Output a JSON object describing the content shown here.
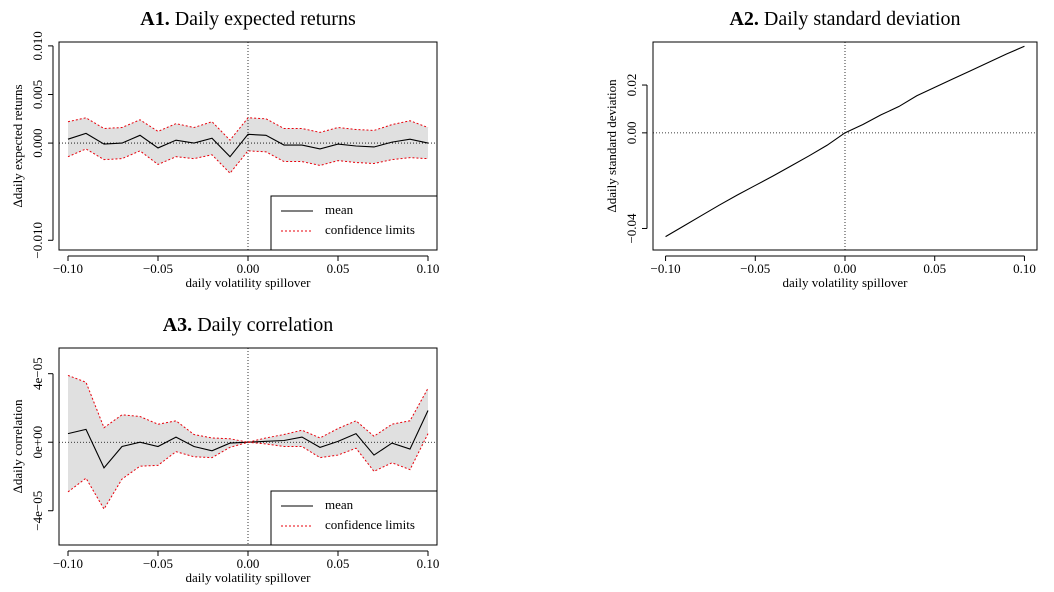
{
  "chart_data": [
    {
      "type": "line",
      "panel": "A1.",
      "title": "Daily expected returns",
      "xlabel": "daily volatility spillover",
      "ylabel": "Δdaily expected returns",
      "x": [
        -0.1,
        -0.09,
        -0.08,
        -0.07,
        -0.06,
        -0.05,
        -0.04,
        -0.03,
        -0.02,
        -0.01,
        0,
        0.01,
        0.02,
        0.03,
        0.04,
        0.05,
        0.06,
        0.07,
        0.08,
        0.09,
        0.1
      ],
      "xlim": [
        -0.105,
        0.105
      ],
      "xticks": [
        {
          "value": -0.1,
          "label": "−0.10"
        },
        {
          "value": -0.05,
          "label": "−0.05"
        },
        {
          "value": 0,
          "label": "0.00"
        },
        {
          "value": 0.05,
          "label": "0.05"
        },
        {
          "value": 0.1,
          "label": "0.10"
        }
      ],
      "ylim": [
        -0.011,
        0.0104
      ],
      "yticks": [
        {
          "value": -0.01,
          "label": "−0.010"
        },
        {
          "value": 0,
          "label": "0.000"
        },
        {
          "value": 0.005,
          "label": "0.005"
        },
        {
          "value": 0.01,
          "label": "0.010"
        }
      ],
      "legend": "lower right",
      "series": [
        {
          "name": "mean",
          "color": "#000000",
          "values": [
            0.0004,
            0.001,
            -0.0001,
            0,
            0.0008,
            -0.0005,
            0.0003,
            0,
            0.0005,
            -0.0014,
            0.0009,
            0.0008,
            -0.0002,
            -0.0002,
            -0.0006,
            -0.0001,
            -0.0003,
            -0.0004,
            0.0001,
            0.0004,
            0
          ]
        },
        {
          "name": "confidence limits",
          "color": "#e8000b",
          "band_color": "#e0e0e0",
          "upper": [
            0.0022,
            0.0026,
            0.0015,
            0.0016,
            0.0024,
            0.0012,
            0.002,
            0.0016,
            0.0022,
            0.0003,
            0.0026,
            0.0025,
            0.0015,
            0.0015,
            0.0011,
            0.0016,
            0.0014,
            0.0013,
            0.0019,
            0.0023,
            0.0016
          ],
          "lower": [
            -0.0014,
            -0.0006,
            -0.0017,
            -0.0016,
            -0.0008,
            -0.0022,
            -0.0014,
            -0.0016,
            -0.0012,
            -0.0031,
            -0.0008,
            -0.0009,
            -0.0019,
            -0.0019,
            -0.0023,
            -0.0018,
            -0.002,
            -0.0021,
            -0.0017,
            -0.0015,
            -0.0016
          ]
        }
      ]
    },
    {
      "type": "line",
      "panel": "A2.",
      "title": "Daily standard deviation",
      "xlabel": "daily volatility spillover",
      "ylabel": "Δdaily standard deviation",
      "x": [
        -0.1,
        -0.09,
        -0.08,
        -0.07,
        -0.06,
        -0.05,
        -0.04,
        -0.03,
        -0.02,
        -0.01,
        0,
        0.01,
        0.02,
        0.03,
        0.04,
        0.05,
        0.06,
        0.07,
        0.08,
        0.09,
        0.1
      ],
      "xlim": [
        -0.107,
        0.107
      ],
      "xticks": [
        {
          "value": -0.1,
          "label": "−0.10"
        },
        {
          "value": -0.05,
          "label": "−0.05"
        },
        {
          "value": 0,
          "label": "0.00"
        },
        {
          "value": 0.05,
          "label": "0.05"
        },
        {
          "value": 0.1,
          "label": "0.10"
        }
      ],
      "ylim": [
        -0.049,
        0.038
      ],
      "yticks": [
        {
          "value": -0.04,
          "label": "−0.04"
        },
        {
          "value": 0,
          "label": "0.00"
        },
        {
          "value": 0.02,
          "label": "0.02"
        }
      ],
      "series": [
        {
          "name": "mean",
          "color": "#000000",
          "values": [
            -0.0434,
            -0.039,
            -0.0346,
            -0.0302,
            -0.026,
            -0.022,
            -0.018,
            -0.0138,
            -0.0096,
            -0.0052,
            0,
            0.0035,
            0.0075,
            0.011,
            0.0155,
            0.019,
            0.0225,
            0.026,
            0.0295,
            0.033,
            0.0362
          ]
        }
      ]
    },
    {
      "type": "line",
      "panel": "A3.",
      "title": "Daily correlation",
      "xlabel": "daily volatility spillover",
      "ylabel": "Δdaily correlation",
      "x": [
        -0.1,
        -0.09,
        -0.08,
        -0.07,
        -0.06,
        -0.05,
        -0.04,
        -0.03,
        -0.02,
        -0.01,
        0,
        0.01,
        0.02,
        0.03,
        0.04,
        0.05,
        0.06,
        0.07,
        0.08,
        0.09,
        0.1
      ],
      "xlim": [
        -0.105,
        0.105
      ],
      "xticks": [
        {
          "value": -0.1,
          "label": "−0.10"
        },
        {
          "value": -0.05,
          "label": "−0.05"
        },
        {
          "value": 0,
          "label": "0.00"
        },
        {
          "value": 0.05,
          "label": "0.05"
        },
        {
          "value": 0.1,
          "label": "0.10"
        }
      ],
      "ylim": [
        -6e-05,
        5.5e-05
      ],
      "yticks": [
        {
          "value": -4e-05,
          "label": "−4e−05"
        },
        {
          "value": 0,
          "label": "0e+00"
        },
        {
          "value": 4e-05,
          "label": "4e−05"
        }
      ],
      "legend": "lower right",
      "series": [
        {
          "name": "mean",
          "color": "#000000",
          "values": [
            5e-06,
            7.5e-06,
            -1.5e-05,
            -2.5e-06,
            0,
            -2.5e-06,
            3e-06,
            -2.5e-06,
            -5e-06,
            -5e-07,
            0,
            5e-07,
            1e-06,
            3e-06,
            -3e-06,
            5e-07,
            5e-06,
            -7.5e-06,
            -5e-07,
            -4e-06,
            1.85e-05
          ]
        },
        {
          "name": "confidence limits",
          "color": "#e8000b",
          "band_color": "#e0e0e0",
          "upper": [
            3.9e-05,
            3.5e-05,
            8.5e-06,
            1.6e-05,
            1.5e-05,
            1.05e-05,
            1.25e-05,
            4.5e-06,
            2.5e-06,
            2e-06,
            0,
            2.5e-06,
            4.5e-06,
            7e-06,
            2.5e-06,
            8e-06,
            1.25e-05,
            3.5e-06,
            1.05e-05,
            1.25e-05,
            3.15e-05
          ],
          "lower": [
            -2.9e-05,
            -2.1e-05,
            -3.9e-05,
            -2.15e-05,
            -1.4e-05,
            -1.35e-05,
            -5.5e-06,
            -8.5e-06,
            -9e-06,
            -3e-06,
            0,
            -1e-06,
            -2.5e-06,
            -2.5e-06,
            -9e-06,
            -7.5e-06,
            -3.5e-06,
            -1.7e-05,
            -1.2e-05,
            -1.6e-05,
            5e-06
          ]
        }
      ]
    }
  ]
}
